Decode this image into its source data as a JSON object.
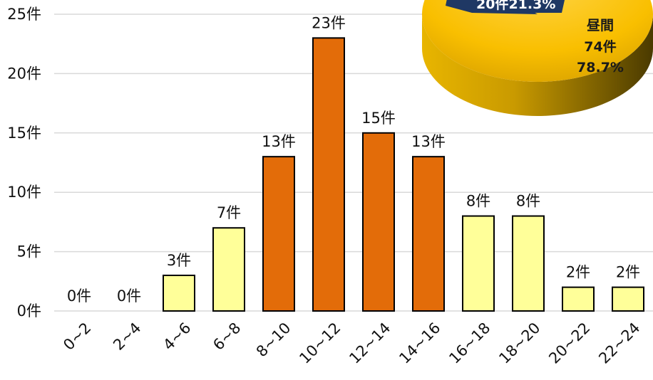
{
  "chart_data": {
    "type": "bar",
    "categories": [
      "0~2",
      "2~4",
      "4~6",
      "6~8",
      "8~10",
      "10~12",
      "12~14",
      "14~16",
      "16~18",
      "18~20",
      "20~22",
      "22~24"
    ],
    "values": [
      0,
      0,
      3,
      7,
      13,
      23,
      15,
      13,
      8,
      8,
      2,
      2
    ],
    "value_labels": [
      "0件",
      "0件",
      "3件",
      "7件",
      "13件",
      "23件",
      "15件",
      "13件",
      "8件",
      "8件",
      "2件",
      "2件"
    ],
    "highlight": [
      false,
      false,
      false,
      false,
      true,
      true,
      true,
      true,
      false,
      false,
      false,
      false
    ],
    "yticks": [
      0,
      5,
      10,
      15,
      20,
      25
    ],
    "ytick_labels": [
      "0件",
      "5件",
      "10件",
      "15件",
      "20件",
      "25件"
    ],
    "ylim": [
      0,
      25
    ],
    "grid": true,
    "colors": {
      "normal": "#FFFF99",
      "highlight": "#E36C09",
      "outline": "#000000"
    },
    "pie": {
      "type": "pie",
      "slices": [
        {
          "label": "昼間",
          "count": "74件",
          "percent": "78.7%",
          "value": 74,
          "color": "#FFC000"
        },
        {
          "label": "",
          "count": "20件",
          "percent": "21.3%",
          "value": 20,
          "color": "#1F3864"
        }
      ],
      "partial_label": "20件21.3%"
    }
  }
}
